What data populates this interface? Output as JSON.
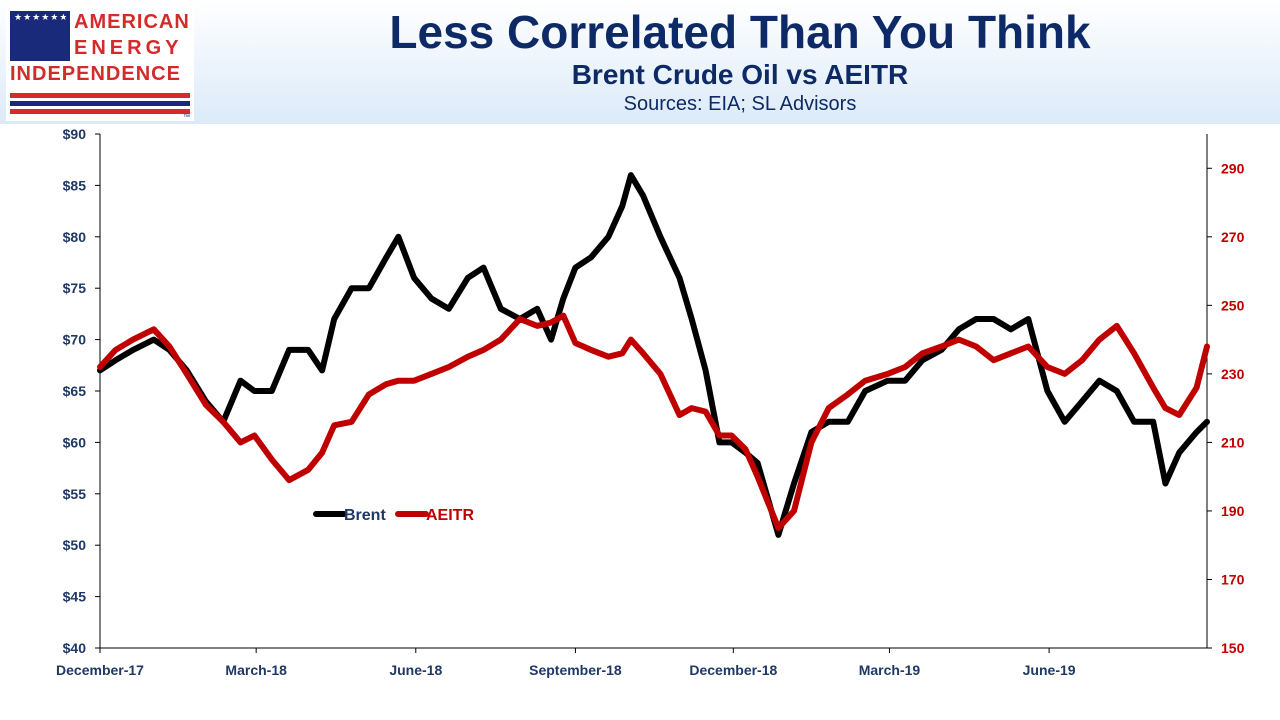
{
  "header": {
    "logo": {
      "line1": "AMERICAN",
      "line2": "ENERGY",
      "line3": "INDEPENDENCE",
      "trademark": "™"
    },
    "title": "Less Correlated Than You Think",
    "subtitle": "Brent Crude Oil vs AEITR",
    "source": "Sources: EIA; SL Advisors"
  },
  "colors": {
    "brent": "#000000",
    "aeitr": "#c00000",
    "left_axis_text": "#1f3864",
    "right_axis_text": "#c00000",
    "title": "#0e2a66"
  },
  "chart_data": {
    "type": "line",
    "x_tick_labels": [
      "December-17",
      "March-18",
      "June-18",
      "September-18",
      "December-18",
      "March-19",
      "June-19"
    ],
    "x_ticks": [
      "2017-12-01",
      "2018-03-01",
      "2018-06-01",
      "2018-09-01",
      "2018-12-01",
      "2019-03-01",
      "2019-06-01"
    ],
    "xlim": [
      "2017-12-01",
      "2019-08-31"
    ],
    "y_left": {
      "lim": [
        40,
        90
      ],
      "ticks": [
        40,
        45,
        50,
        55,
        60,
        65,
        70,
        75,
        80,
        85,
        90
      ],
      "tick_labels": [
        "$40",
        "$45",
        "$50",
        "$55",
        "$60",
        "$65",
        "$70",
        "$75",
        "$80",
        "$85",
        "$90"
      ]
    },
    "y_right": {
      "lim": [
        150,
        300
      ],
      "ticks": [
        150,
        170,
        190,
        210,
        230,
        250,
        270,
        290
      ],
      "tick_labels": [
        "150",
        "170",
        "190",
        "210",
        "230",
        "250",
        "270",
        "290"
      ]
    },
    "legend": {
      "placement": "middle-left",
      "entries": [
        "Brent",
        "AEITR"
      ]
    },
    "grid": false,
    "series": [
      {
        "name": "Brent",
        "axis": "left",
        "points": [
          [
            "2017-12-01",
            67
          ],
          [
            "2017-12-10",
            68
          ],
          [
            "2017-12-20",
            69
          ],
          [
            "2018-01-01",
            70
          ],
          [
            "2018-01-10",
            69
          ],
          [
            "2018-01-20",
            67
          ],
          [
            "2018-01-31",
            64
          ],
          [
            "2018-02-10",
            62
          ],
          [
            "2018-02-20",
            66
          ],
          [
            "2018-02-28",
            65
          ],
          [
            "2018-03-10",
            65
          ],
          [
            "2018-03-20",
            69
          ],
          [
            "2018-03-31",
            69
          ],
          [
            "2018-04-08",
            67
          ],
          [
            "2018-04-15",
            72
          ],
          [
            "2018-04-25",
            75
          ],
          [
            "2018-05-05",
            75
          ],
          [
            "2018-05-15",
            78
          ],
          [
            "2018-05-22",
            80
          ],
          [
            "2018-05-31",
            76
          ],
          [
            "2018-06-10",
            74
          ],
          [
            "2018-06-20",
            73
          ],
          [
            "2018-07-01",
            76
          ],
          [
            "2018-07-10",
            77
          ],
          [
            "2018-07-20",
            73
          ],
          [
            "2018-07-31",
            72
          ],
          [
            "2018-08-10",
            73
          ],
          [
            "2018-08-18",
            70
          ],
          [
            "2018-08-25",
            74
          ],
          [
            "2018-09-01",
            77
          ],
          [
            "2018-09-10",
            78
          ],
          [
            "2018-09-20",
            80
          ],
          [
            "2018-09-28",
            83
          ],
          [
            "2018-10-03",
            86
          ],
          [
            "2018-10-10",
            84
          ],
          [
            "2018-10-20",
            80
          ],
          [
            "2018-10-31",
            76
          ],
          [
            "2018-11-07",
            72
          ],
          [
            "2018-11-15",
            67
          ],
          [
            "2018-11-23",
            60
          ],
          [
            "2018-11-30",
            60
          ],
          [
            "2018-12-08",
            59
          ],
          [
            "2018-12-15",
            58
          ],
          [
            "2018-12-27",
            51
          ],
          [
            "2019-01-05",
            56
          ],
          [
            "2019-01-15",
            61
          ],
          [
            "2019-01-25",
            62
          ],
          [
            "2019-02-05",
            62
          ],
          [
            "2019-02-15",
            65
          ],
          [
            "2019-02-28",
            66
          ],
          [
            "2019-03-10",
            66
          ],
          [
            "2019-03-20",
            68
          ],
          [
            "2019-03-31",
            69
          ],
          [
            "2019-04-10",
            71
          ],
          [
            "2019-04-20",
            72
          ],
          [
            "2019-04-30",
            72
          ],
          [
            "2019-05-10",
            71
          ],
          [
            "2019-05-20",
            72
          ],
          [
            "2019-05-31",
            65
          ],
          [
            "2019-06-10",
            62
          ],
          [
            "2019-06-20",
            64
          ],
          [
            "2019-06-30",
            66
          ],
          [
            "2019-07-10",
            65
          ],
          [
            "2019-07-20",
            62
          ],
          [
            "2019-07-31",
            62
          ],
          [
            "2019-08-07",
            56
          ],
          [
            "2019-08-15",
            59
          ],
          [
            "2019-08-25",
            61
          ],
          [
            "2019-08-31",
            62
          ]
        ]
      },
      {
        "name": "AEITR",
        "axis": "right",
        "points": [
          [
            "2017-12-01",
            232
          ],
          [
            "2017-12-10",
            237
          ],
          [
            "2017-12-20",
            240
          ],
          [
            "2018-01-01",
            243
          ],
          [
            "2018-01-10",
            238
          ],
          [
            "2018-01-20",
            230
          ],
          [
            "2018-01-31",
            221
          ],
          [
            "2018-02-10",
            216
          ],
          [
            "2018-02-20",
            210
          ],
          [
            "2018-02-28",
            212
          ],
          [
            "2018-03-10",
            205
          ],
          [
            "2018-03-20",
            199
          ],
          [
            "2018-03-31",
            202
          ],
          [
            "2018-04-08",
            207
          ],
          [
            "2018-04-15",
            215
          ],
          [
            "2018-04-25",
            216
          ],
          [
            "2018-05-05",
            224
          ],
          [
            "2018-05-15",
            227
          ],
          [
            "2018-05-22",
            228
          ],
          [
            "2018-05-31",
            228
          ],
          [
            "2018-06-10",
            230
          ],
          [
            "2018-06-20",
            232
          ],
          [
            "2018-07-01",
            235
          ],
          [
            "2018-07-10",
            237
          ],
          [
            "2018-07-20",
            240
          ],
          [
            "2018-07-31",
            246
          ],
          [
            "2018-08-10",
            244
          ],
          [
            "2018-08-18",
            245
          ],
          [
            "2018-08-25",
            247
          ],
          [
            "2018-09-01",
            239
          ],
          [
            "2018-09-10",
            237
          ],
          [
            "2018-09-20",
            235
          ],
          [
            "2018-09-28",
            236
          ],
          [
            "2018-10-03",
            240
          ],
          [
            "2018-10-10",
            236
          ],
          [
            "2018-10-20",
            230
          ],
          [
            "2018-10-31",
            218
          ],
          [
            "2018-11-07",
            220
          ],
          [
            "2018-11-15",
            219
          ],
          [
            "2018-11-23",
            212
          ],
          [
            "2018-11-30",
            212
          ],
          [
            "2018-12-08",
            208
          ],
          [
            "2018-12-15",
            200
          ],
          [
            "2018-12-27",
            185
          ],
          [
            "2019-01-05",
            190
          ],
          [
            "2019-01-15",
            210
          ],
          [
            "2019-01-25",
            220
          ],
          [
            "2019-02-05",
            224
          ],
          [
            "2019-02-15",
            228
          ],
          [
            "2019-02-28",
            230
          ],
          [
            "2019-03-10",
            232
          ],
          [
            "2019-03-20",
            236
          ],
          [
            "2019-03-31",
            238
          ],
          [
            "2019-04-10",
            240
          ],
          [
            "2019-04-20",
            238
          ],
          [
            "2019-04-30",
            234
          ],
          [
            "2019-05-10",
            236
          ],
          [
            "2019-05-20",
            238
          ],
          [
            "2019-05-31",
            232
          ],
          [
            "2019-06-10",
            230
          ],
          [
            "2019-06-20",
            234
          ],
          [
            "2019-06-30",
            240
          ],
          [
            "2019-07-10",
            244
          ],
          [
            "2019-07-20",
            236
          ],
          [
            "2019-07-31",
            226
          ],
          [
            "2019-08-07",
            220
          ],
          [
            "2019-08-15",
            218
          ],
          [
            "2019-08-25",
            226
          ],
          [
            "2019-08-31",
            238
          ]
        ]
      }
    ]
  }
}
